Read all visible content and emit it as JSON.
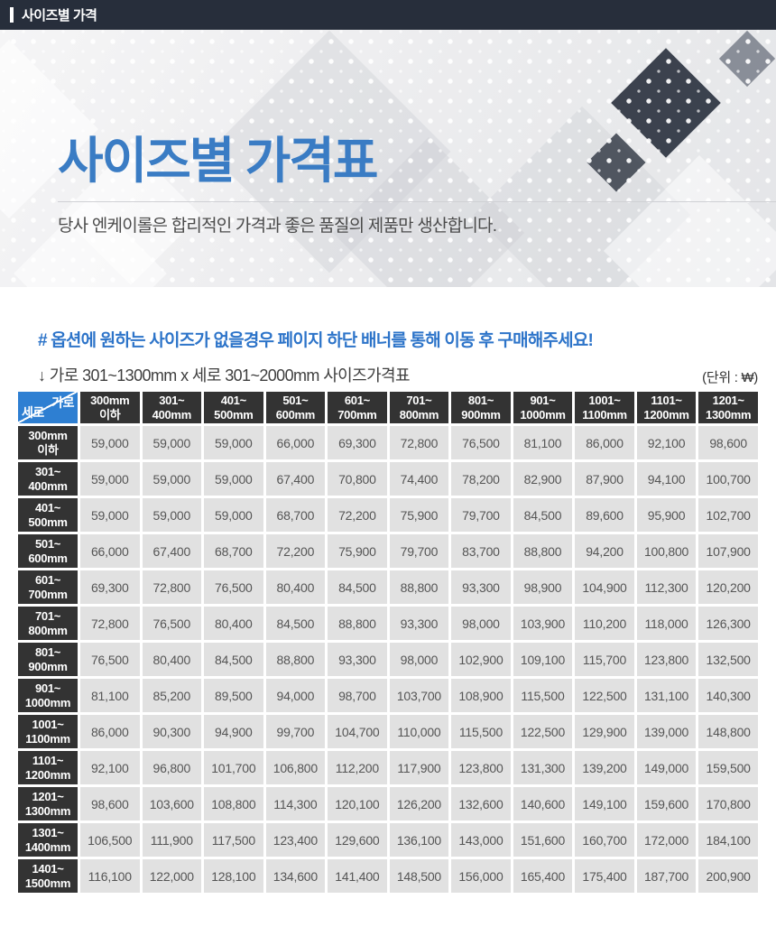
{
  "top_bar": {
    "title": "사이즈별 가격",
    "bg": "#272e3b"
  },
  "hero": {
    "title": "사이즈별 가격표",
    "title_color": "#3a7cc4",
    "subtitle": "당사 엔케이롤은 합리적인 가격과 좋은 품질의 제품만 생산합니다."
  },
  "notice": {
    "highlight": "# 옵션에 원하는 사이즈가 없을경우 페이지 하단 배너를 통해 이동 후 구매해주세요!",
    "caption": "↓ 가로 301~1300mm x 세로 301~2000mm 사이즈가격표",
    "unit": "(단위 : ₩)"
  },
  "table": {
    "corner": {
      "top_right": "가로",
      "bottom_left": "세로",
      "bg": "#2e7fd2"
    },
    "header_bg": "#333333",
    "cell_bg": "#e1e1e1",
    "columns": [
      [
        "300mm",
        "이하"
      ],
      [
        "301~",
        "400mm"
      ],
      [
        "401~",
        "500mm"
      ],
      [
        "501~",
        "600mm"
      ],
      [
        "601~",
        "700mm"
      ],
      [
        "701~",
        "800mm"
      ],
      [
        "801~",
        "900mm"
      ],
      [
        "901~",
        "1000mm"
      ],
      [
        "1001~",
        "1100mm"
      ],
      [
        "1101~",
        "1200mm"
      ],
      [
        "1201~",
        "1300mm"
      ]
    ],
    "rows": [
      {
        "label": [
          "300mm",
          "이하"
        ],
        "values": [
          "59,000",
          "59,000",
          "59,000",
          "66,000",
          "69,300",
          "72,800",
          "76,500",
          "81,100",
          "86,000",
          "92,100",
          "98,600"
        ]
      },
      {
        "label": [
          "301~",
          "400mm"
        ],
        "values": [
          "59,000",
          "59,000",
          "59,000",
          "67,400",
          "70,800",
          "74,400",
          "78,200",
          "82,900",
          "87,900",
          "94,100",
          "100,700"
        ]
      },
      {
        "label": [
          "401~",
          "500mm"
        ],
        "values": [
          "59,000",
          "59,000",
          "59,000",
          "68,700",
          "72,200",
          "75,900",
          "79,700",
          "84,500",
          "89,600",
          "95,900",
          "102,700"
        ]
      },
      {
        "label": [
          "501~",
          "600mm"
        ],
        "values": [
          "66,000",
          "67,400",
          "68,700",
          "72,200",
          "75,900",
          "79,700",
          "83,700",
          "88,800",
          "94,200",
          "100,800",
          "107,900"
        ]
      },
      {
        "label": [
          "601~",
          "700mm"
        ],
        "values": [
          "69,300",
          "72,800",
          "76,500",
          "80,400",
          "84,500",
          "88,800",
          "93,300",
          "98,900",
          "104,900",
          "112,300",
          "120,200"
        ]
      },
      {
        "label": [
          "701~",
          "800mm"
        ],
        "values": [
          "72,800",
          "76,500",
          "80,400",
          "84,500",
          "88,800",
          "93,300",
          "98,000",
          "103,900",
          "110,200",
          "118,000",
          "126,300"
        ]
      },
      {
        "label": [
          "801~",
          "900mm"
        ],
        "values": [
          "76,500",
          "80,400",
          "84,500",
          "88,800",
          "93,300",
          "98,000",
          "102,900",
          "109,100",
          "115,700",
          "123,800",
          "132,500"
        ]
      },
      {
        "label": [
          "901~",
          "1000mm"
        ],
        "values": [
          "81,100",
          "85,200",
          "89,500",
          "94,000",
          "98,700",
          "103,700",
          "108,900",
          "115,500",
          "122,500",
          "131,100",
          "140,300"
        ]
      },
      {
        "label": [
          "1001~",
          "1100mm"
        ],
        "values": [
          "86,000",
          "90,300",
          "94,900",
          "99,700",
          "104,700",
          "110,000",
          "115,500",
          "122,500",
          "129,900",
          "139,000",
          "148,800"
        ]
      },
      {
        "label": [
          "1101~",
          "1200mm"
        ],
        "values": [
          "92,100",
          "96,800",
          "101,700",
          "106,800",
          "112,200",
          "117,900",
          "123,800",
          "131,300",
          "139,200",
          "149,000",
          "159,500"
        ]
      },
      {
        "label": [
          "1201~",
          "1300mm"
        ],
        "values": [
          "98,600",
          "103,600",
          "108,800",
          "114,300",
          "120,100",
          "126,200",
          "132,600",
          "140,600",
          "149,100",
          "159,600",
          "170,800"
        ]
      },
      {
        "label": [
          "1301~",
          "1400mm"
        ],
        "values": [
          "106,500",
          "111,900",
          "117,500",
          "123,400",
          "129,600",
          "136,100",
          "143,000",
          "151,600",
          "160,700",
          "172,000",
          "184,100"
        ]
      },
      {
        "label": [
          "1401~",
          "1500mm"
        ],
        "values": [
          "116,100",
          "122,000",
          "128,100",
          "134,600",
          "141,400",
          "148,500",
          "156,000",
          "165,400",
          "175,400",
          "187,700",
          "200,900"
        ]
      }
    ]
  }
}
